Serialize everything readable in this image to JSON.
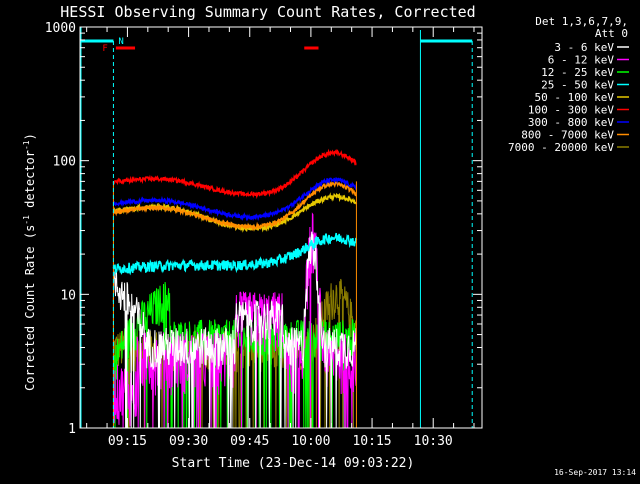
{
  "chart_data": {
    "type": "line",
    "title": "HESSI Observing Summary Count Rates, Corrected",
    "xlabel": "Start Time (23-Dec-14 09:03:22)",
    "ylabel_main": "Corrected Count Rate (s",
    "ylabel_sup1": "-1",
    "ylabel_mid": " detector",
    "ylabel_sup2": "-1",
    "ylabel_end": ")",
    "y_scale": "log",
    "ylim": [
      1,
      1000
    ],
    "xlim": [
      "09:03:22",
      "10:42:00"
    ],
    "x_tick_labels": [
      "09:15",
      "09:30",
      "09:45",
      "10:00",
      "10:15",
      "10:30"
    ],
    "x_tick_minutes": [
      15,
      30,
      45,
      60,
      75,
      90
    ],
    "y_tick_labels": [
      "1",
      "10",
      "100",
      "1000"
    ],
    "y_tick_values": [
      1,
      10,
      100,
      1000
    ],
    "legend_placement": "right",
    "legend_header": [
      "Det 1,3,6,7,9,",
      "Att 0"
    ],
    "series": [
      {
        "name": "3 - 6 keV",
        "color": "#ffffff"
      },
      {
        "name": "6 - 12 keV",
        "color": "#ff00ff"
      },
      {
        "name": "12 - 25 keV",
        "color": "#00ff00"
      },
      {
        "name": "25 - 50 keV",
        "color": "#00ffff"
      },
      {
        "name": "50 - 100 keV",
        "color": "#e6c800"
      },
      {
        "name": "100 - 300 keV",
        "color": "#ff0000"
      },
      {
        "name": "300 - 800 keV",
        "color": "#0000ff"
      },
      {
        "name": "800 - 7000 keV",
        "color": "#ff8c00"
      },
      {
        "name": "7000 - 20000 keV",
        "color": "#8b7d00"
      }
    ],
    "annotations": {
      "night_label": "N",
      "flare_label": "F",
      "night_color": "#00ffff",
      "flare_color": "#ff0000"
    }
  },
  "footer": {
    "timestamp": "16-Sep-2017 13:14"
  }
}
